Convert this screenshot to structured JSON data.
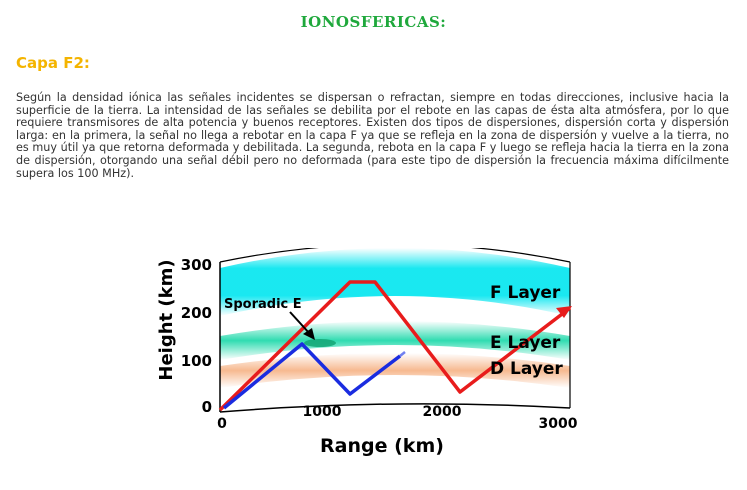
{
  "page": {
    "title": "IONOSFERICAS:",
    "section_title": "Capa F2:",
    "paragraph": "Según la densidad iónica las señales incidentes se dispersan o refractan, siempre en todas direcciones, inclusive hacia la superficie de la tierra. La intensidad de las señales se debilita por el rebote en las capas de ésta alta atmósfera, por lo que requiere transmisores de alta potencia y buenos receptores. Existen dos tipos de dispersiones, dispersión corta y dispersión larga: en la primera, la señal no llega a rebotar en la capa F ya que se refleja en la zona de dispersión y vuelve a la tierra, no es muy útil ya que retorna deformada y debilitada. La segunda, rebota en la capa F y luego se refleja hacia la tierra en la zona de dispersión, otorgando una señal débil pero no deformada (para este tipo de dispersión la frecuencia máxima difícilmente supera los 100 MHz)."
  },
  "figure": {
    "ylabel": "Height (km)",
    "xlabel": "Range (km)",
    "y_ticks": [
      "0",
      "100",
      "200",
      "300"
    ],
    "x_ticks": [
      "0",
      "1000",
      "2000",
      "3000"
    ],
    "layers": {
      "f_layer": "F Layer",
      "e_layer": "E Layer",
      "d_layer": "D Layer",
      "sporadic_e": "Sporadic E"
    },
    "colors": {
      "f_layer": "#00e5ef",
      "e_layer": "#19d8a8",
      "d_layer": "#f6b58a",
      "long_path": "#e81c1c",
      "short_path": "#1a2ce0"
    }
  }
}
